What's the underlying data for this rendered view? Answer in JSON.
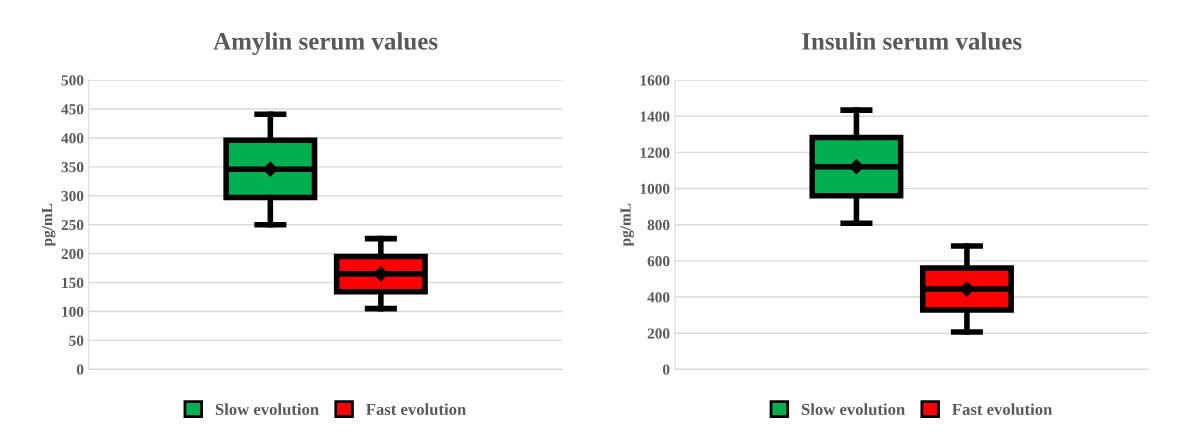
{
  "chart_data": [
    {
      "type": "box",
      "title": "Amylin serum values",
      "ylabel": "pg/mL",
      "categories": [
        null
      ],
      "ylim": [
        0,
        500
      ],
      "yticks": [
        0,
        50,
        100,
        150,
        200,
        250,
        300,
        350,
        400,
        450,
        500
      ],
      "grid": "y",
      "legend": "bottom",
      "marker": "diamond",
      "series": [
        {
          "name": "Slow evolution",
          "color": "#00b050",
          "boxes": [
            {
              "low": 250,
              "q1": 297,
              "median": 346,
              "q3": 396,
              "high": 441,
              "mean": 346
            }
          ]
        },
        {
          "name": "Fast evolution",
          "color": "#ff0000",
          "boxes": [
            {
              "low": 105,
              "q1": 134,
              "median": 165,
              "q3": 195,
              "high": 226,
              "mean": 165
            }
          ]
        }
      ]
    },
    {
      "type": "box",
      "title": "Insulin serum values",
      "ylabel": "pg/mL",
      "categories": [
        null
      ],
      "ylim": [
        0,
        1600
      ],
      "yticks": [
        0,
        200,
        400,
        600,
        800,
        1000,
        1200,
        1400,
        1600
      ],
      "grid": "y",
      "legend": "bottom",
      "marker": "diamond",
      "series": [
        {
          "name": "Slow evolution",
          "color": "#00b050",
          "boxes": [
            {
              "low": 808,
              "q1": 960,
              "median": 1121,
              "q3": 1283,
              "high": 1434,
              "mean": 1121
            }
          ]
        },
        {
          "name": "Fast evolution",
          "color": "#ff0000",
          "boxes": [
            {
              "low": 207,
              "q1": 328,
              "median": 444,
              "q3": 560,
              "high": 682,
              "mean": 444
            }
          ]
        }
      ]
    }
  ]
}
